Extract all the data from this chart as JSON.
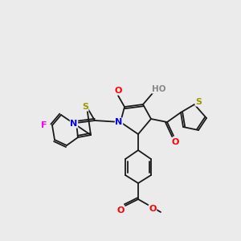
{
  "bg_color": "#ebebeb",
  "bond_color": "#1a1a1a",
  "atom_colors": {
    "N": "#0000ff",
    "O": "#ff0000",
    "S": "#999900",
    "F": "#ff00ff",
    "H": "#888888",
    "C": "#1a1a1a"
  },
  "figsize": [
    3.0,
    3.0
  ],
  "dpi": 100
}
